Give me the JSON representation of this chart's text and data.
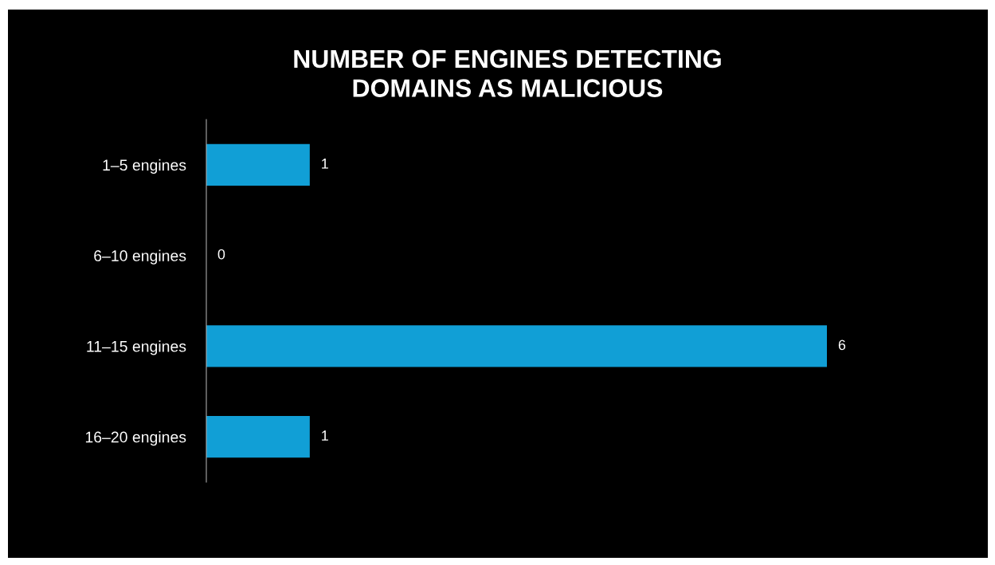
{
  "chart_data": {
    "type": "bar",
    "orientation": "horizontal",
    "title": "NUMBER OF ENGINES DETECTING\nDOMAINS AS MALICIOUS",
    "categories": [
      "1–5 engines",
      "6–10 engines",
      "11–15 engines",
      "16–20 engines"
    ],
    "values": [
      1,
      0,
      6,
      1
    ],
    "color": "#119fd6",
    "data_labels": true,
    "grid": false,
    "legend": false,
    "tick_labels": "y"
  }
}
